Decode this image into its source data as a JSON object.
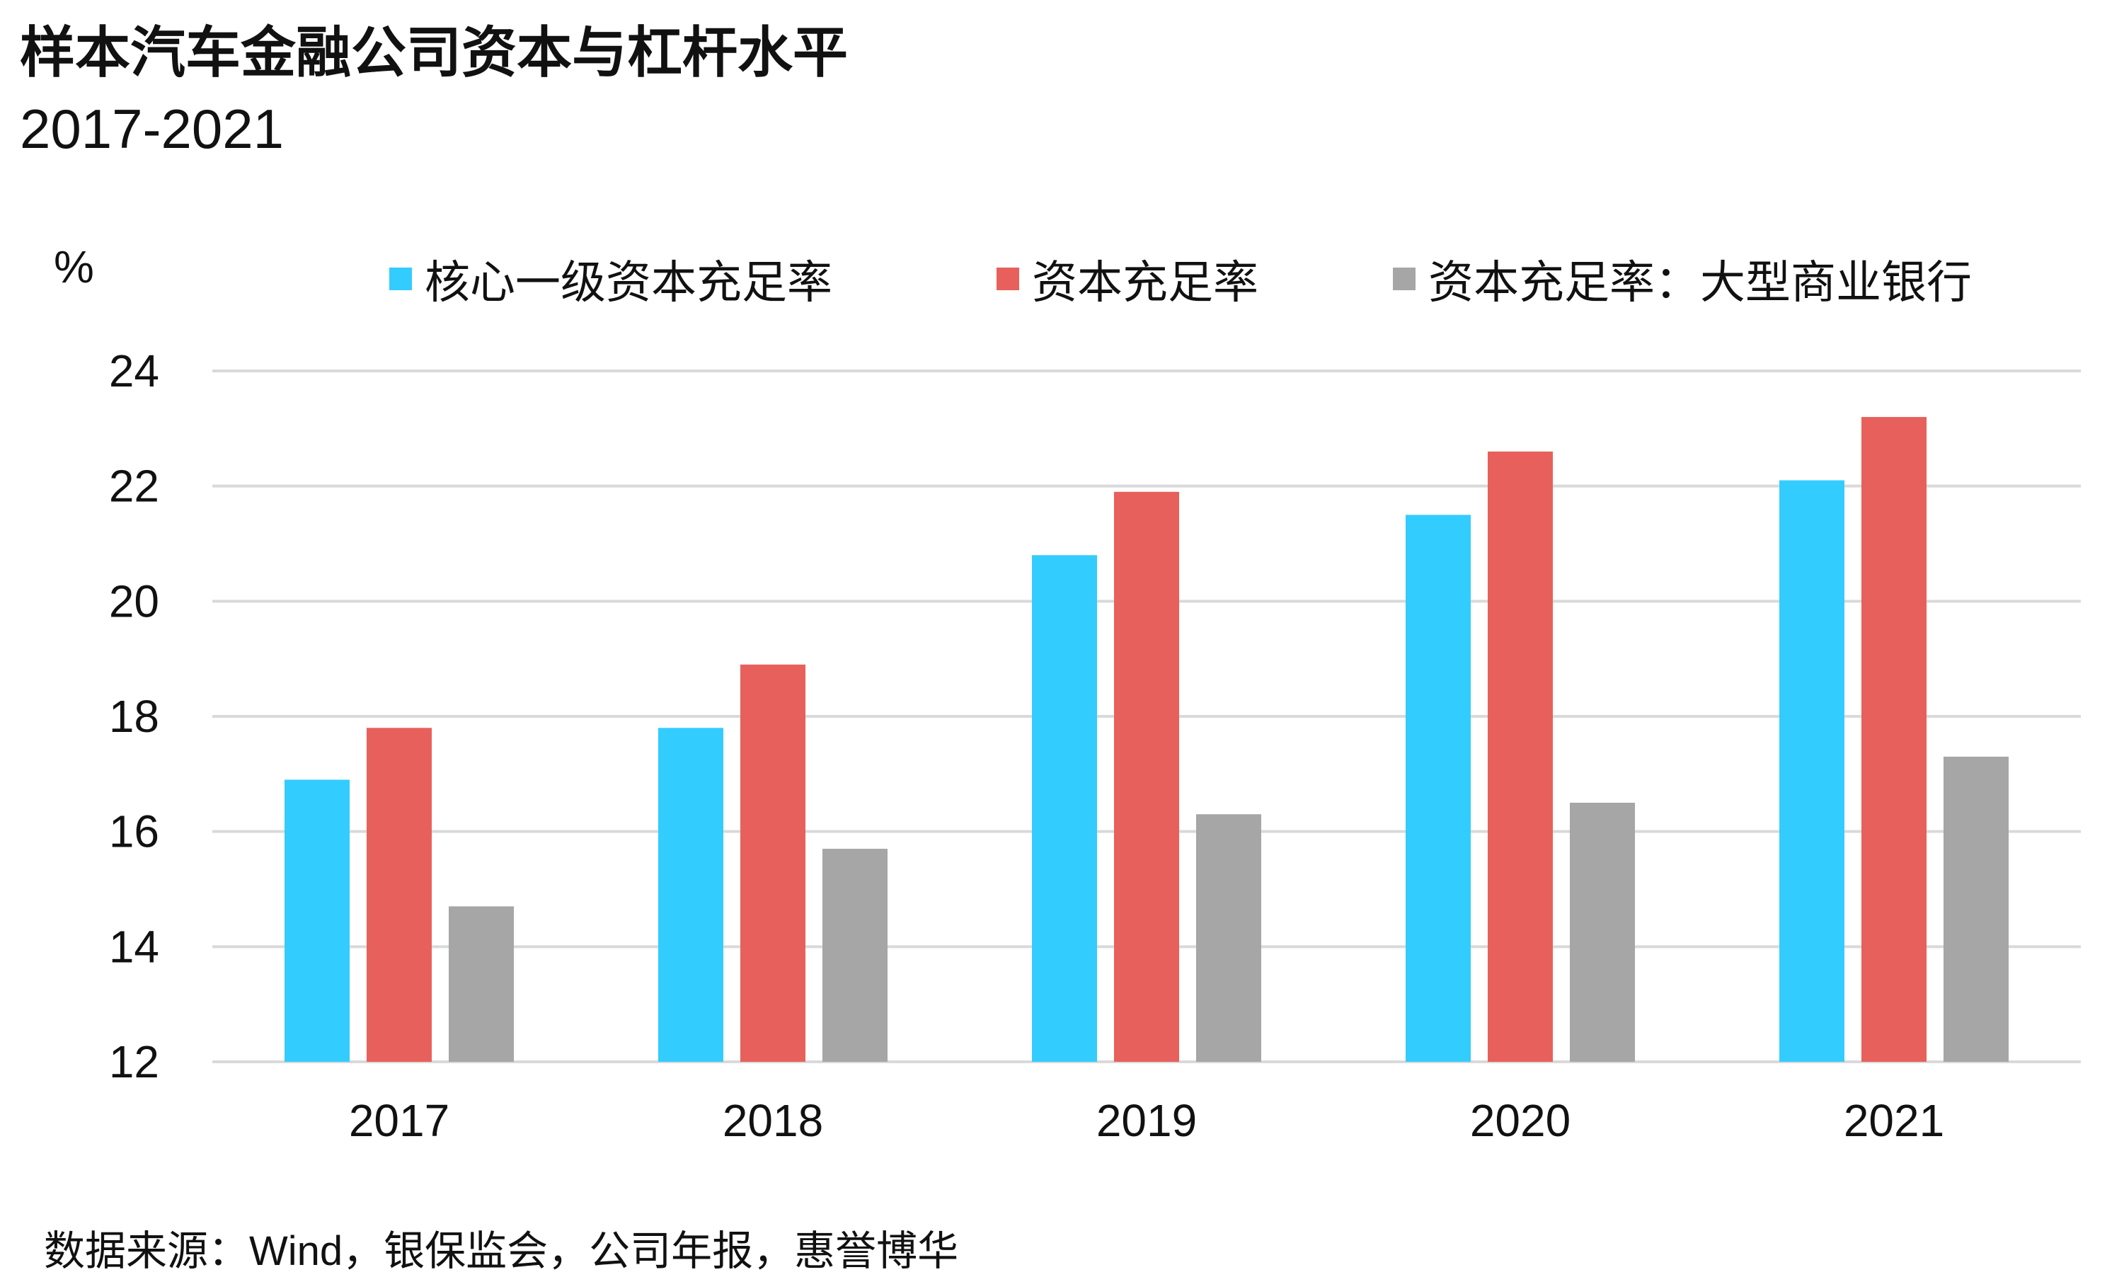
{
  "title": "样本汽车金融公司资本与杠杆水平",
  "subtitle": "2017-2021",
  "source": "数据来源：Wind，银保监会，公司年报，惠誉博华",
  "colors": {
    "s1": "#33ccff",
    "s2": "#e8605b",
    "s3": "#a6a6a6",
    "grid": "#d9d9d9"
  },
  "chart_data": {
    "type": "bar",
    "ylabel": "%",
    "ylim": [
      12,
      24
    ],
    "yticks": [
      12,
      14,
      16,
      18,
      20,
      22,
      24
    ],
    "grid": true,
    "legend_position": "top",
    "categories": [
      "2017",
      "2018",
      "2019",
      "2020",
      "2021"
    ],
    "series": [
      {
        "name": "核心一级资本充足率",
        "values": [
          16.9,
          17.8,
          20.8,
          21.5,
          22.1
        ]
      },
      {
        "name": "资本充足率",
        "values": [
          17.8,
          18.9,
          21.9,
          22.6,
          23.2
        ]
      },
      {
        "name": "资本充足率：大型商业银行",
        "values": [
          14.7,
          15.7,
          16.3,
          16.5,
          17.3
        ]
      }
    ]
  }
}
